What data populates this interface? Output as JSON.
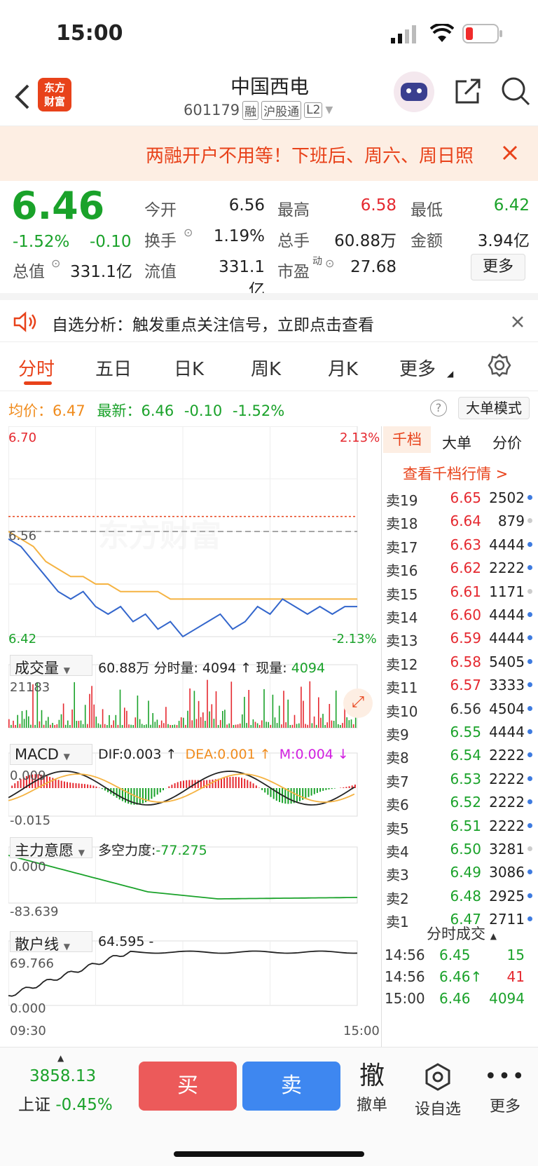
{
  "status": {
    "time": "15:00"
  },
  "header": {
    "title": "中国西电",
    "code": "601179",
    "badges": [
      "融",
      "沪股通",
      "L2"
    ],
    "logo_top": "东方",
    "logo_bottom": "财富"
  },
  "banner": {
    "text": "两融开户不用等！下班后、周六、周日照"
  },
  "quote": {
    "price": "6.46",
    "pct": "-1.52%",
    "chg": "-0.10",
    "open_label": "今开",
    "open": "6.56",
    "high_label": "最高",
    "high": "6.58",
    "low_label": "最低",
    "low": "6.42",
    "turnover_label": "换手",
    "turnover": "1.19%",
    "vol_label": "总手",
    "vol": "60.88万",
    "amount_label": "金额",
    "amount": "3.94亿",
    "mcap_label": "总值",
    "mcap": "331.1亿",
    "float_label": "流值",
    "float": "331.1亿",
    "pe_label": "市盈",
    "pe_sup": "动",
    "pe": "27.68",
    "more": "更多"
  },
  "notice": {
    "text": "自选分析：触发重点关注信号，立即点击查看"
  },
  "tabs": [
    "分时",
    "五日",
    "日K",
    "周K",
    "月K",
    "更多"
  ],
  "info": {
    "avg_label": "均价：",
    "avg": "6.47",
    "last_label": "最新：",
    "last": "6.46",
    "chg": "-0.10",
    "pct": "-1.52%",
    "mode": "大单模式"
  },
  "chart": {
    "price_max": "6.70",
    "price_min": "6.42",
    "pct_max": "2.13%",
    "pct_min": "-2.13%",
    "prev_close": "6.56",
    "vol_indicator": "成交量",
    "vol_info_a": "60.88万",
    "vol_info_b": "分时量: 4094 ↑",
    "vol_info_c": "现量:",
    "vol_info_d": "4094",
    "vol_max": "21183",
    "macd_indicator": "MACD",
    "dif": "DIF:0.003 ↑",
    "dea": "DEA:0.001 ↑",
    "m": "M:0.004 ↓",
    "macd_max": "0.009",
    "macd_min": "-0.015",
    "zl_indicator": "主力意愿",
    "zl_info": "多空力度:",
    "zl_value": "-77.275",
    "zl_max": "0.000",
    "zl_min": "-83.639",
    "sh_indicator": "散户线",
    "sh_value": "64.595 -",
    "sh_max": "69.766",
    "sh_min": "0.000",
    "time_start": "09:30",
    "time_end": "15:00",
    "watermark": "东方财富"
  },
  "chart_data": {
    "type": "line",
    "title": "",
    "series": [
      {
        "name": "最新",
        "values": [
          6.55,
          6.54,
          6.52,
          6.5,
          6.48,
          6.47,
          6.48,
          6.46,
          6.45,
          6.46,
          6.44,
          6.45,
          6.43,
          6.44,
          6.42,
          6.43,
          6.44,
          6.45,
          6.43,
          6.44,
          6.46,
          6.45,
          6.47,
          6.46,
          6.45,
          6.46,
          6.45,
          6.46,
          6.46
        ]
      },
      {
        "name": "均价",
        "values": [
          6.56,
          6.55,
          6.54,
          6.52,
          6.51,
          6.5,
          6.5,
          6.49,
          6.49,
          6.48,
          6.48,
          6.48,
          6.48,
          6.47,
          6.47,
          6.47,
          6.47,
          6.47,
          6.47,
          6.47,
          6.47,
          6.47,
          6.47,
          6.47,
          6.47,
          6.47,
          6.47,
          6.47,
          6.47
        ]
      }
    ],
    "ylim": [
      6.42,
      6.7
    ]
  },
  "orderbook": {
    "tabs": [
      "千档",
      "大单",
      "分价"
    ],
    "link": "查看千档行情 >",
    "rows": [
      {
        "s": "卖19",
        "p": "6.65",
        "v": "2502",
        "c": "red",
        "d": "blue"
      },
      {
        "s": "卖18",
        "p": "6.64",
        "v": "879",
        "c": "red",
        "d": "gray"
      },
      {
        "s": "卖17",
        "p": "6.63",
        "v": "4444",
        "c": "red",
        "d": "blue"
      },
      {
        "s": "卖16",
        "p": "6.62",
        "v": "2222",
        "c": "red",
        "d": "blue"
      },
      {
        "s": "卖15",
        "p": "6.61",
        "v": "1171",
        "c": "red",
        "d": "gray"
      },
      {
        "s": "卖14",
        "p": "6.60",
        "v": "4444",
        "c": "red",
        "d": "blue"
      },
      {
        "s": "卖13",
        "p": "6.59",
        "v": "4444",
        "c": "red",
        "d": "blue"
      },
      {
        "s": "卖12",
        "p": "6.58",
        "v": "5405",
        "c": "red",
        "d": "blue"
      },
      {
        "s": "卖11",
        "p": "6.57",
        "v": "3333",
        "c": "red",
        "d": "blue"
      },
      {
        "s": "卖10",
        "p": "6.56",
        "v": "4504",
        "c": "dark",
        "d": "blue"
      },
      {
        "s": "卖9",
        "p": "6.55",
        "v": "4444",
        "c": "green",
        "d": "blue"
      },
      {
        "s": "卖8",
        "p": "6.54",
        "v": "2222",
        "c": "green",
        "d": "blue"
      },
      {
        "s": "卖7",
        "p": "6.53",
        "v": "2222",
        "c": "green",
        "d": "blue"
      },
      {
        "s": "卖6",
        "p": "6.52",
        "v": "2222",
        "c": "green",
        "d": "blue"
      },
      {
        "s": "卖5",
        "p": "6.51",
        "v": "2222",
        "c": "green",
        "d": "blue"
      },
      {
        "s": "卖4",
        "p": "6.50",
        "v": "3281",
        "c": "green",
        "d": "gray"
      },
      {
        "s": "卖3",
        "p": "6.49",
        "v": "3086",
        "c": "green",
        "d": "blue"
      },
      {
        "s": "卖2",
        "p": "6.48",
        "v": "2925",
        "c": "green",
        "d": "blue"
      },
      {
        "s": "卖1",
        "p": "6.47",
        "v": "2711",
        "c": "green",
        "d": "blue"
      }
    ],
    "trades_title": "分时成交",
    "trades": [
      {
        "t": "14:56",
        "p": "6.45",
        "v": "15",
        "pc": "green",
        "vc": "green"
      },
      {
        "t": "14:56",
        "p": "6.46↑",
        "v": "41",
        "pc": "green",
        "vc": "red"
      },
      {
        "t": "15:00",
        "p": "6.46",
        "v": "4094",
        "pc": "green",
        "vc": "green"
      }
    ]
  },
  "bottom": {
    "index_value": "3858.13",
    "index_name": "上证",
    "index_pct": "-0.45%",
    "buy": "买",
    "sell": "卖",
    "cancel_glyph": "撤",
    "cancel": "撤单",
    "fav": "设自选",
    "more": "更多"
  }
}
